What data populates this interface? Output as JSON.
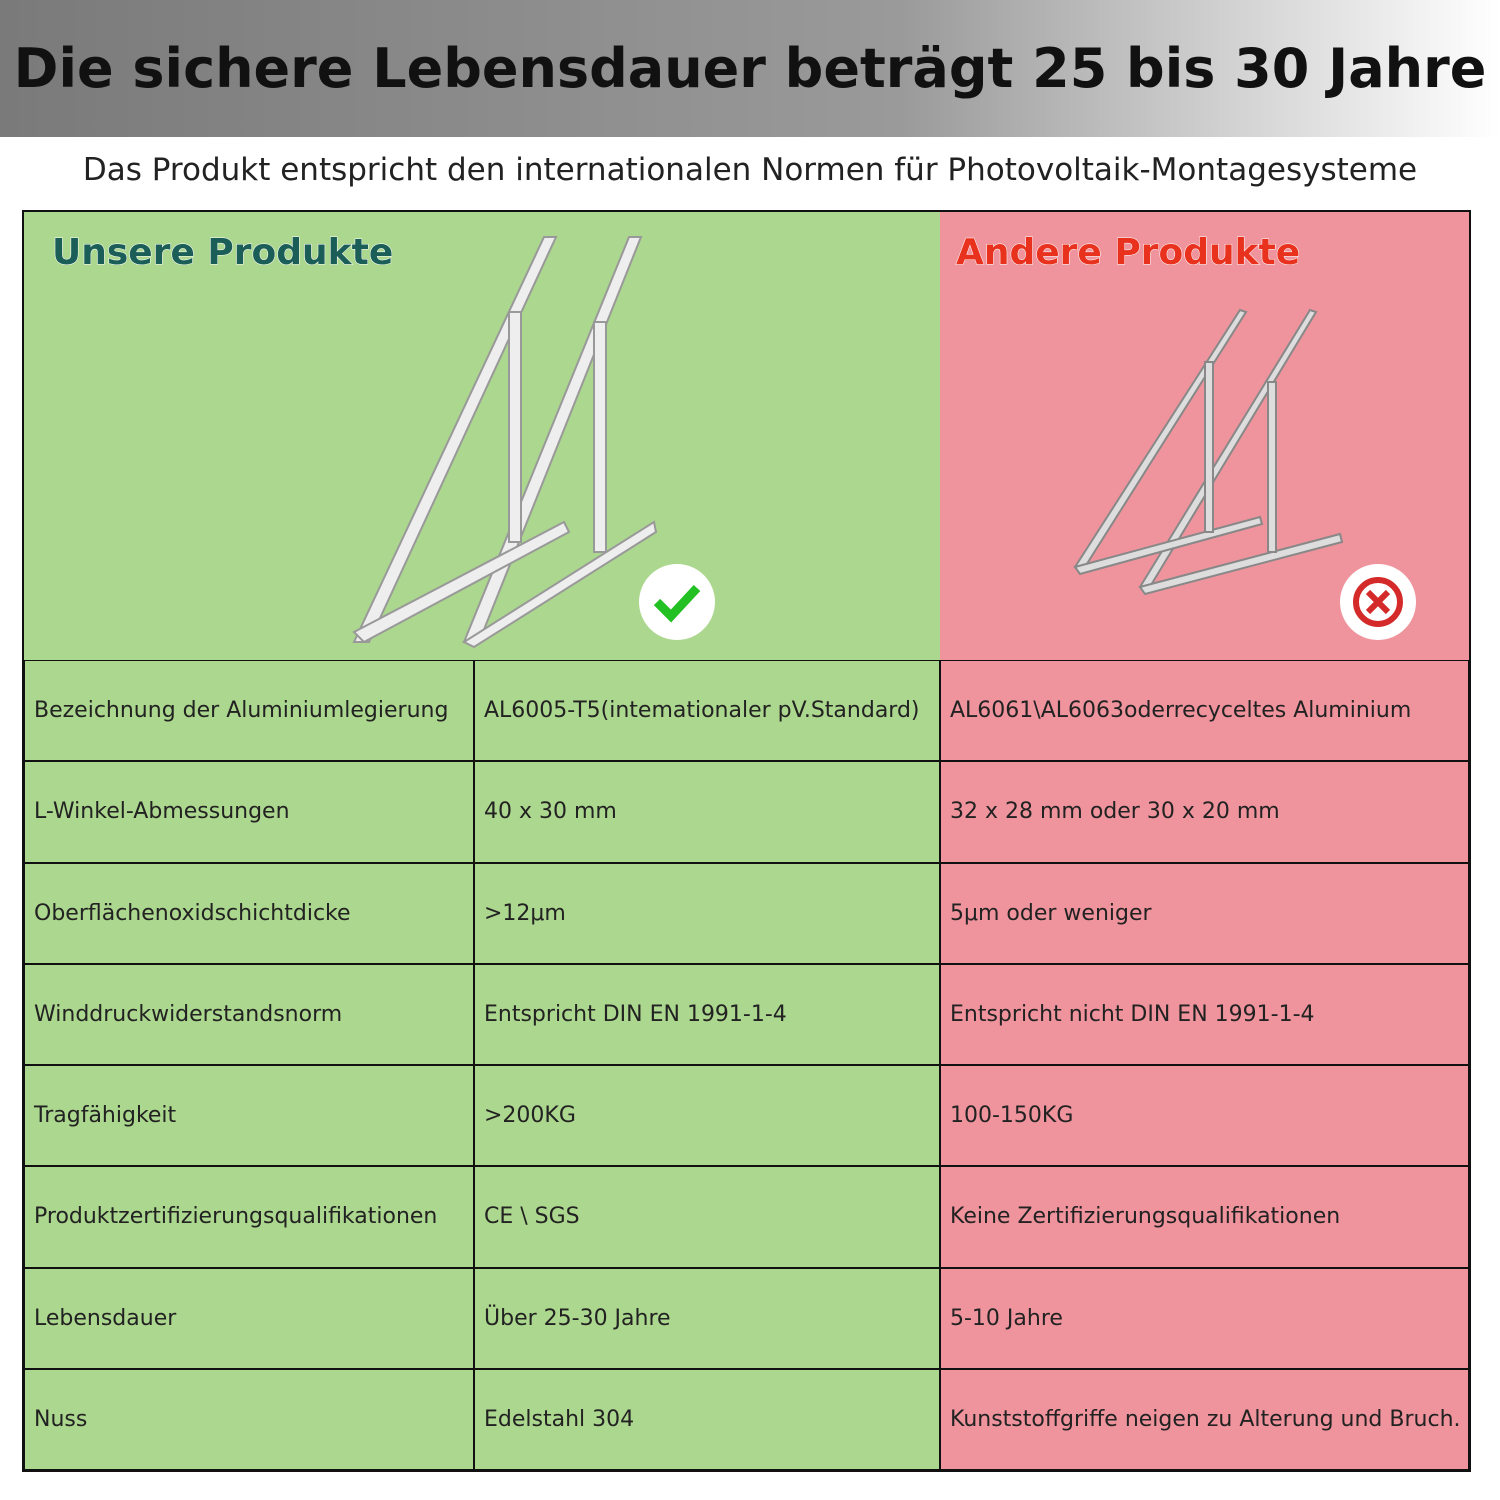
{
  "header": {
    "title": "Die sichere Lebensdauer beträgt 25 bis 30 Jahre",
    "subtitle": "Das Produkt entspricht den internationalen Normen für Photovoltaik-Montagesysteme"
  },
  "columns": {
    "ours": "Unsere Produkte",
    "others": "Andere Produkte"
  },
  "table": {
    "rows": [
      [
        "Bezeichnung der Aluminiumlegierung",
        "AL6005-T5(intemationaler pV.Standard)",
        "AL6061\\AL6063oderrecyceltes Aluminium"
      ],
      [
        "L-Winkel-Abmessungen",
        "40 x 30 mm",
        "32 x 28 mm oder 30 x 20 mm"
      ],
      [
        "Oberflächenoxidschichtdicke",
        ">12μm",
        "5μm oder weniger"
      ],
      [
        "Winddruckwiderstandsnorm",
        "Entspricht DIN EN 1991-1-4",
        "Entspricht nicht DIN EN 1991-1-4"
      ],
      [
        "Tragfähigkeit",
        ">200KG",
        "100-150KG"
      ],
      [
        "Produktzertifizierungsqualifikationen",
        "CE \\ SGS",
        "Keine Zertifizierungsqualifikationen"
      ],
      [
        "Lebensdauer",
        "Über 25-30 Jahre",
        "5-10 Jahre"
      ],
      [
        "Nuss",
        "Edelstahl 304",
        "Kunststoffgriffe neigen zu Alterung und Bruch."
      ]
    ]
  }
}
